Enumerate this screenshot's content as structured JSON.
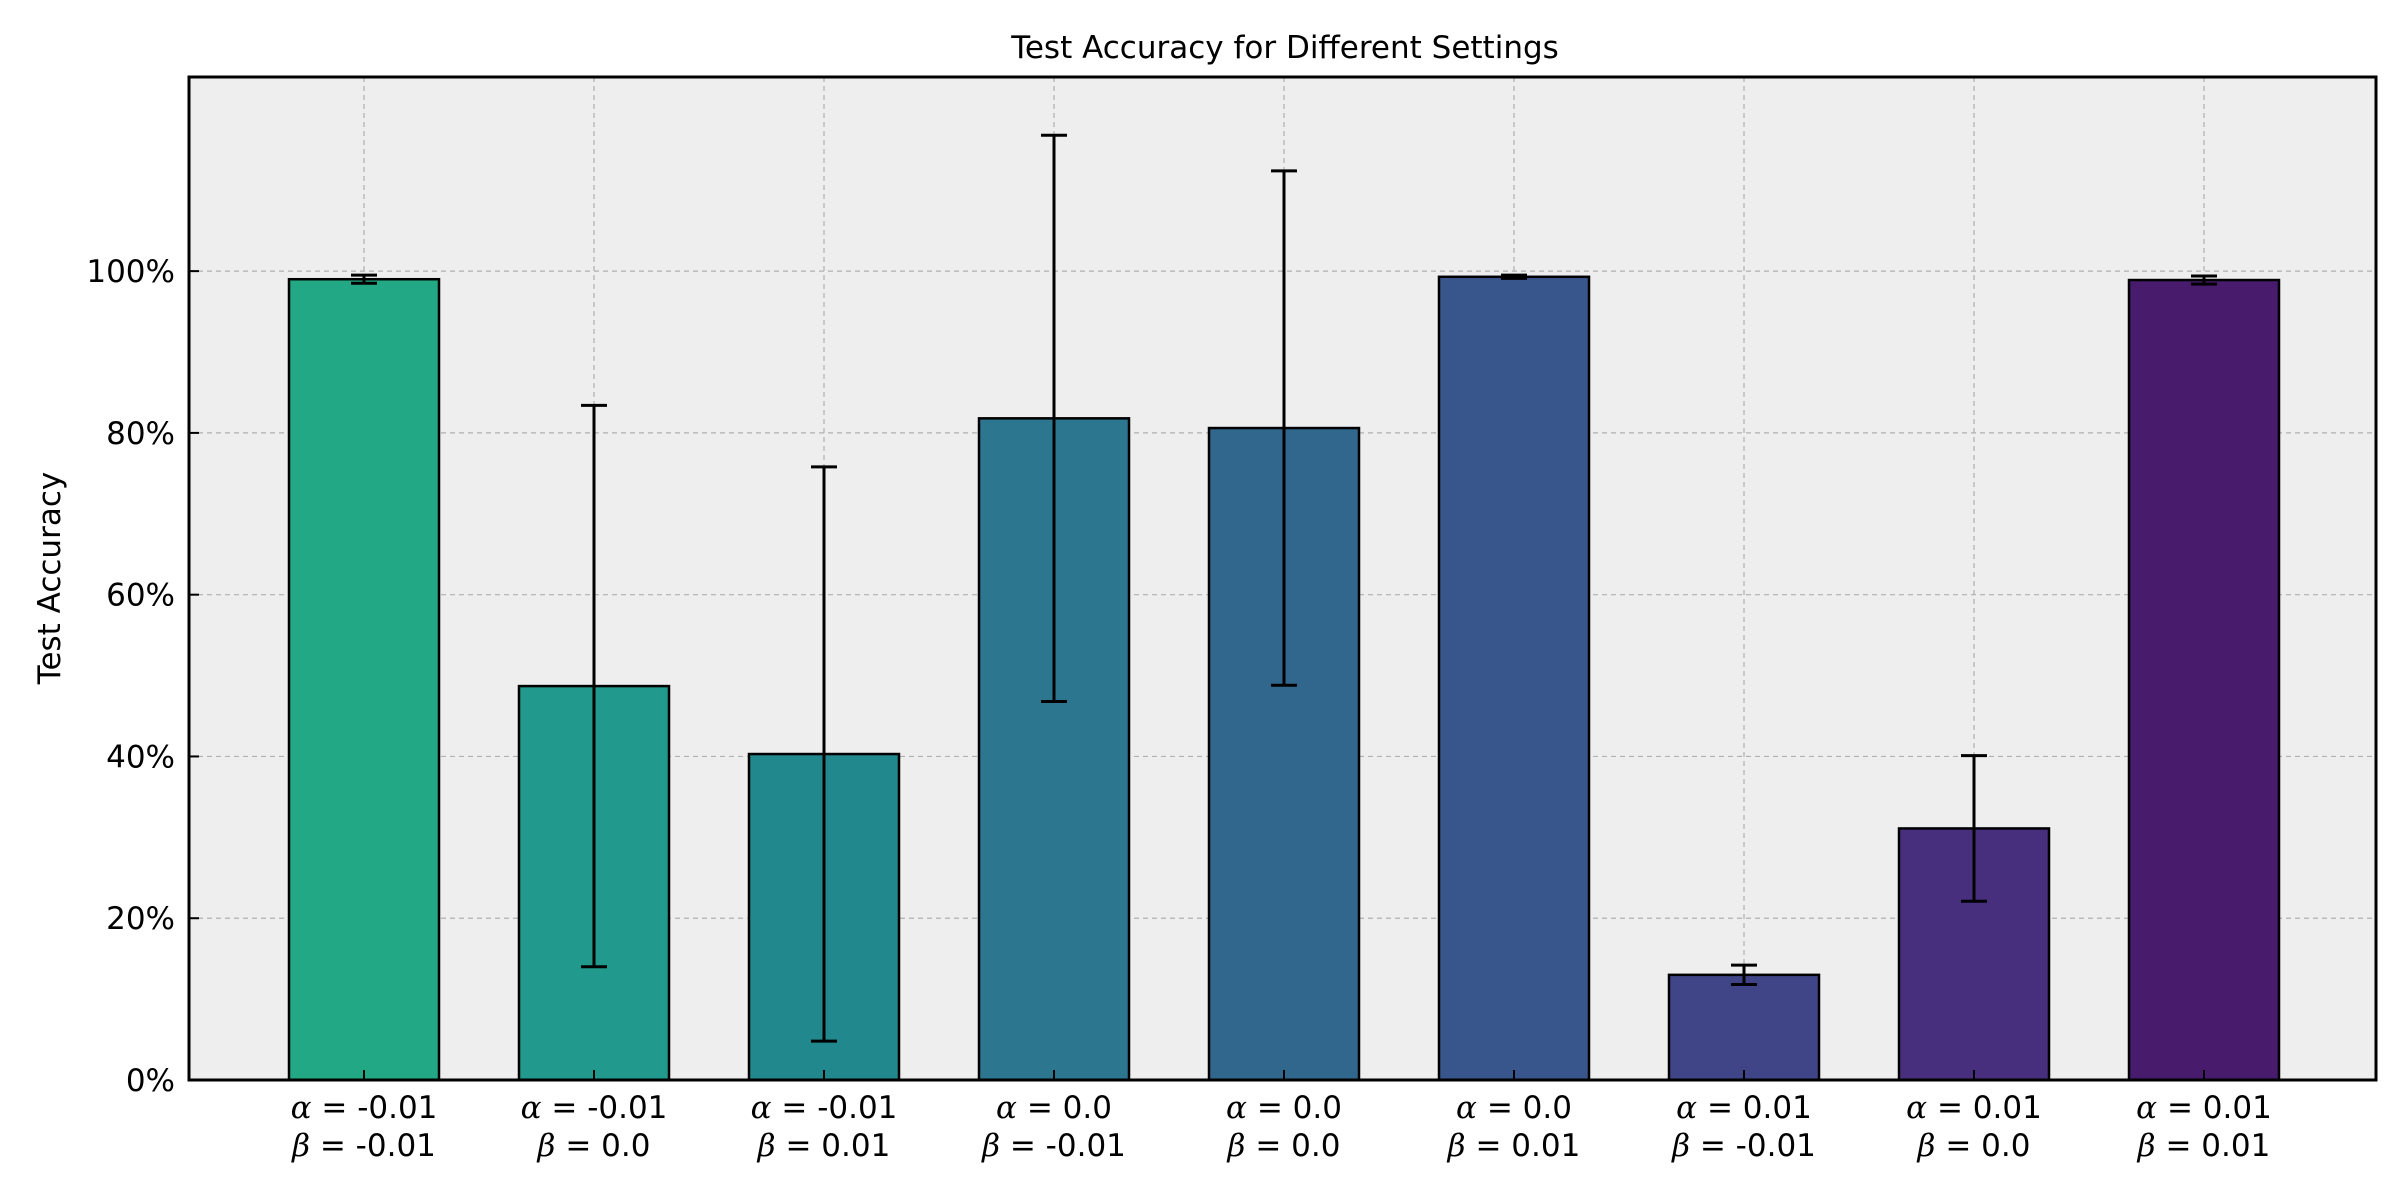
{
  "chart_data": {
    "type": "bar",
    "title": "Test Accuracy for Different Settings",
    "xlabel": "",
    "ylabel": "Test Accuracy",
    "ylim": [
      0,
      1.24
    ],
    "yticks": [
      0,
      0.2,
      0.4,
      0.6,
      0.8,
      1.0
    ],
    "ytick_labels": [
      "0%",
      "20%",
      "40%",
      "60%",
      "80%",
      "100%"
    ],
    "grid": true,
    "categories": [
      {
        "alpha": "-0.01",
        "beta": "-0.01"
      },
      {
        "alpha": "-0.01",
        "beta": "0.0"
      },
      {
        "alpha": "-0.01",
        "beta": "0.01"
      },
      {
        "alpha": "0.0",
        "beta": "-0.01"
      },
      {
        "alpha": "0.0",
        "beta": "0.0"
      },
      {
        "alpha": "0.0",
        "beta": "0.01"
      },
      {
        "alpha": "0.01",
        "beta": "-0.01"
      },
      {
        "alpha": "0.01",
        "beta": "0.0"
      },
      {
        "alpha": "0.01",
        "beta": "0.01"
      }
    ],
    "values": [
      0.99,
      0.487,
      0.403,
      0.818,
      0.806,
      0.993,
      0.13,
      0.311,
      0.989
    ],
    "errors": [
      0.005,
      0.347,
      0.355,
      0.35,
      0.318,
      0.002,
      0.012,
      0.09,
      0.005
    ],
    "colors": [
      "#22a884",
      "#21998d",
      "#21888d",
      "#2c778f",
      "#32678d",
      "#38558c",
      "#404587",
      "#472f7d",
      "#481b6d"
    ]
  }
}
